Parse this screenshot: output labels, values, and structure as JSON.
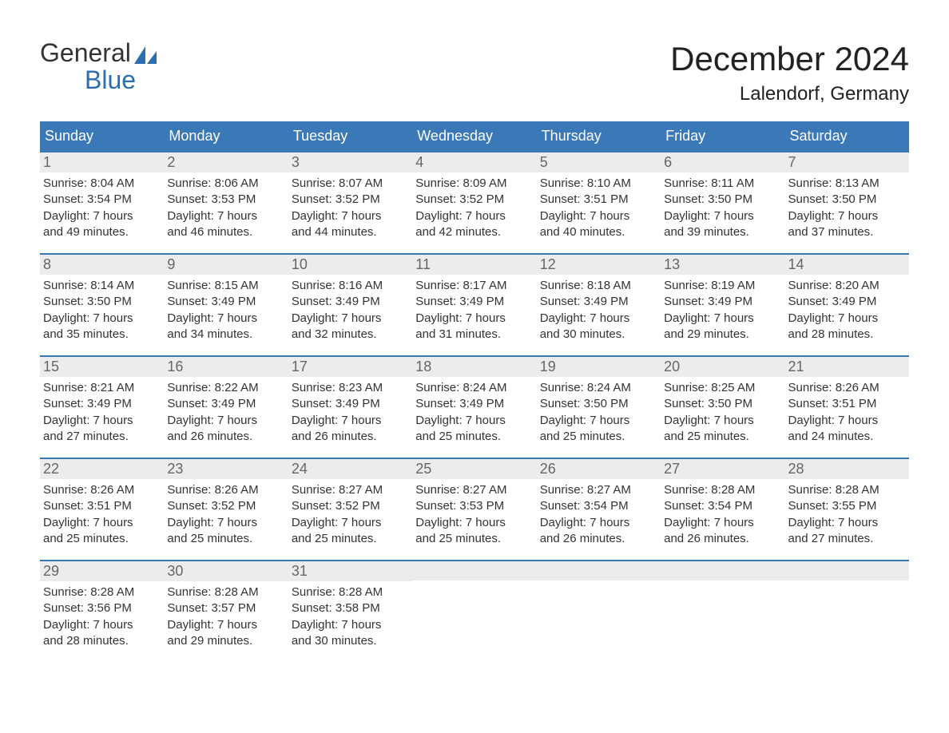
{
  "brand": {
    "word1": "General",
    "word2": "Blue",
    "accent_color": "#2d6eb1"
  },
  "title": "December 2024",
  "location": "Lalendorf, Germany",
  "colors": {
    "header_bg": "#3b78b8",
    "header_text": "#ffffff",
    "row_border": "#3b78b8",
    "daynum_bg": "#ececec",
    "daynum_text": "#666666",
    "body_text": "#333333",
    "page_bg": "#ffffff"
  },
  "weekdays": [
    "Sunday",
    "Monday",
    "Tuesday",
    "Wednesday",
    "Thursday",
    "Friday",
    "Saturday"
  ],
  "weeks": [
    [
      {
        "day": "1",
        "sunrise": "8:04 AM",
        "sunset": "3:54 PM",
        "daylight": "7 hours and 49 minutes."
      },
      {
        "day": "2",
        "sunrise": "8:06 AM",
        "sunset": "3:53 PM",
        "daylight": "7 hours and 46 minutes."
      },
      {
        "day": "3",
        "sunrise": "8:07 AM",
        "sunset": "3:52 PM",
        "daylight": "7 hours and 44 minutes."
      },
      {
        "day": "4",
        "sunrise": "8:09 AM",
        "sunset": "3:52 PM",
        "daylight": "7 hours and 42 minutes."
      },
      {
        "day": "5",
        "sunrise": "8:10 AM",
        "sunset": "3:51 PM",
        "daylight": "7 hours and 40 minutes."
      },
      {
        "day": "6",
        "sunrise": "8:11 AM",
        "sunset": "3:50 PM",
        "daylight": "7 hours and 39 minutes."
      },
      {
        "day": "7",
        "sunrise": "8:13 AM",
        "sunset": "3:50 PM",
        "daylight": "7 hours and 37 minutes."
      }
    ],
    [
      {
        "day": "8",
        "sunrise": "8:14 AM",
        "sunset": "3:50 PM",
        "daylight": "7 hours and 35 minutes."
      },
      {
        "day": "9",
        "sunrise": "8:15 AM",
        "sunset": "3:49 PM",
        "daylight": "7 hours and 34 minutes."
      },
      {
        "day": "10",
        "sunrise": "8:16 AM",
        "sunset": "3:49 PM",
        "daylight": "7 hours and 32 minutes."
      },
      {
        "day": "11",
        "sunrise": "8:17 AM",
        "sunset": "3:49 PM",
        "daylight": "7 hours and 31 minutes."
      },
      {
        "day": "12",
        "sunrise": "8:18 AM",
        "sunset": "3:49 PM",
        "daylight": "7 hours and 30 minutes."
      },
      {
        "day": "13",
        "sunrise": "8:19 AM",
        "sunset": "3:49 PM",
        "daylight": "7 hours and 29 minutes."
      },
      {
        "day": "14",
        "sunrise": "8:20 AM",
        "sunset": "3:49 PM",
        "daylight": "7 hours and 28 minutes."
      }
    ],
    [
      {
        "day": "15",
        "sunrise": "8:21 AM",
        "sunset": "3:49 PM",
        "daylight": "7 hours and 27 minutes."
      },
      {
        "day": "16",
        "sunrise": "8:22 AM",
        "sunset": "3:49 PM",
        "daylight": "7 hours and 26 minutes."
      },
      {
        "day": "17",
        "sunrise": "8:23 AM",
        "sunset": "3:49 PM",
        "daylight": "7 hours and 26 minutes."
      },
      {
        "day": "18",
        "sunrise": "8:24 AM",
        "sunset": "3:49 PM",
        "daylight": "7 hours and 25 minutes."
      },
      {
        "day": "19",
        "sunrise": "8:24 AM",
        "sunset": "3:50 PM",
        "daylight": "7 hours and 25 minutes."
      },
      {
        "day": "20",
        "sunrise": "8:25 AM",
        "sunset": "3:50 PM",
        "daylight": "7 hours and 25 minutes."
      },
      {
        "day": "21",
        "sunrise": "8:26 AM",
        "sunset": "3:51 PM",
        "daylight": "7 hours and 24 minutes."
      }
    ],
    [
      {
        "day": "22",
        "sunrise": "8:26 AM",
        "sunset": "3:51 PM",
        "daylight": "7 hours and 25 minutes."
      },
      {
        "day": "23",
        "sunrise": "8:26 AM",
        "sunset": "3:52 PM",
        "daylight": "7 hours and 25 minutes."
      },
      {
        "day": "24",
        "sunrise": "8:27 AM",
        "sunset": "3:52 PM",
        "daylight": "7 hours and 25 minutes."
      },
      {
        "day": "25",
        "sunrise": "8:27 AM",
        "sunset": "3:53 PM",
        "daylight": "7 hours and 25 minutes."
      },
      {
        "day": "26",
        "sunrise": "8:27 AM",
        "sunset": "3:54 PM",
        "daylight": "7 hours and 26 minutes."
      },
      {
        "day": "27",
        "sunrise": "8:28 AM",
        "sunset": "3:54 PM",
        "daylight": "7 hours and 26 minutes."
      },
      {
        "day": "28",
        "sunrise": "8:28 AM",
        "sunset": "3:55 PM",
        "daylight": "7 hours and 27 minutes."
      }
    ],
    [
      {
        "day": "29",
        "sunrise": "8:28 AM",
        "sunset": "3:56 PM",
        "daylight": "7 hours and 28 minutes."
      },
      {
        "day": "30",
        "sunrise": "8:28 AM",
        "sunset": "3:57 PM",
        "daylight": "7 hours and 29 minutes."
      },
      {
        "day": "31",
        "sunrise": "8:28 AM",
        "sunset": "3:58 PM",
        "daylight": "7 hours and 30 minutes."
      },
      null,
      null,
      null,
      null
    ]
  ],
  "labels": {
    "sunrise": "Sunrise:",
    "sunset": "Sunset:",
    "daylight": "Daylight:"
  }
}
